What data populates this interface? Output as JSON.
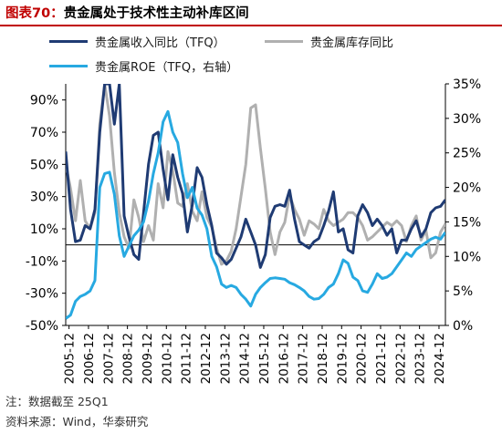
{
  "title": {
    "prefix": "图表70：",
    "text": "贵金属处于技术性主动补库区间"
  },
  "legend": [
    {
      "label": "贵金属收入同比（TFQ）",
      "color": "#1f3b73"
    },
    {
      "label": "贵金属库存同比",
      "color": "#b0b0b0"
    },
    {
      "label": "贵金属ROE（TFQ，右轴）",
      "color": "#27a9e1"
    }
  ],
  "footnotes": {
    "note": "注：数据截至 25Q1",
    "source": "资料来源：Wind，华泰研究"
  },
  "chart_data": {
    "type": "line",
    "x": [
      "2005-12",
      "2006-12",
      "2007-12",
      "2008-12",
      "2009-12",
      "2010-12",
      "2011-12",
      "2012-12",
      "2013-12",
      "2014-12",
      "2015-12",
      "2016-12",
      "2017-12",
      "2018-12",
      "2019-12",
      "2020-12",
      "2021-12",
      "2022-12",
      "2023-12",
      "2024-12"
    ],
    "x_start": 2005.75,
    "x_end": 2025.25,
    "left_axis": {
      "ylim": [
        -50,
        100
      ],
      "ticks": [
        "-50%",
        "-30%",
        "-10%",
        "10%",
        "30%",
        "50%",
        "70%",
        "90%"
      ],
      "tick_values": [
        -50,
        -30,
        -10,
        10,
        30,
        50,
        70,
        90
      ]
    },
    "right_axis": {
      "ylim": [
        0,
        35
      ],
      "ticks": [
        "0%",
        "5%",
        "10%",
        "15%",
        "20%",
        "25%",
        "30%",
        "35%"
      ],
      "tick_values": [
        0,
        5,
        10,
        15,
        20,
        25,
        30,
        35
      ]
    },
    "zero_line": 0,
    "series": [
      {
        "name": "贵金属收入同比（TFQ）",
        "axis": "left",
        "color": "#1f3b73",
        "width": 3,
        "points": [
          [
            2005.75,
            58
          ],
          [
            2006.0,
            22
          ],
          [
            2006.25,
            2
          ],
          [
            2006.5,
            3
          ],
          [
            2006.75,
            12
          ],
          [
            2007.0,
            10
          ],
          [
            2007.25,
            22
          ],
          [
            2007.5,
            70
          ],
          [
            2007.75,
            100
          ],
          [
            2008.0,
            100
          ],
          [
            2008.25,
            75
          ],
          [
            2008.5,
            100
          ],
          [
            2008.75,
            18
          ],
          [
            2009.0,
            5
          ],
          [
            2009.25,
            -6
          ],
          [
            2009.5,
            -9
          ],
          [
            2009.75,
            20
          ],
          [
            2010.0,
            50
          ],
          [
            2010.25,
            68
          ],
          [
            2010.5,
            70
          ],
          [
            2010.75,
            47
          ],
          [
            2011.0,
            28
          ],
          [
            2011.25,
            56
          ],
          [
            2011.5,
            42
          ],
          [
            2011.75,
            32
          ],
          [
            2012.0,
            8
          ],
          [
            2012.25,
            25
          ],
          [
            2012.5,
            48
          ],
          [
            2012.75,
            42
          ],
          [
            2013.0,
            25
          ],
          [
            2013.25,
            12
          ],
          [
            2013.5,
            -5
          ],
          [
            2013.75,
            -8
          ],
          [
            2014.0,
            -12
          ],
          [
            2014.25,
            -9
          ],
          [
            2014.5,
            -2
          ],
          [
            2014.75,
            5
          ],
          [
            2015.0,
            16
          ],
          [
            2015.25,
            8
          ],
          [
            2015.5,
            0
          ],
          [
            2015.75,
            -14
          ],
          [
            2016.0,
            -6
          ],
          [
            2016.25,
            17
          ],
          [
            2016.5,
            24
          ],
          [
            2016.75,
            25
          ],
          [
            2017.0,
            24
          ],
          [
            2017.25,
            34
          ],
          [
            2017.5,
            16
          ],
          [
            2017.75,
            2
          ],
          [
            2018.0,
            0
          ],
          [
            2018.25,
            -2
          ],
          [
            2018.5,
            2
          ],
          [
            2018.75,
            4
          ],
          [
            2019.0,
            12
          ],
          [
            2019.25,
            21
          ],
          [
            2019.5,
            33
          ],
          [
            2019.75,
            8
          ],
          [
            2020.0,
            10
          ],
          [
            2020.25,
            -3
          ],
          [
            2020.5,
            -5
          ],
          [
            2020.75,
            18
          ],
          [
            2021.0,
            25
          ],
          [
            2021.25,
            20
          ],
          [
            2021.5,
            12
          ],
          [
            2021.75,
            16
          ],
          [
            2022.0,
            12
          ],
          [
            2022.25,
            6
          ],
          [
            2022.5,
            10
          ],
          [
            2022.75,
            -5
          ],
          [
            2023.0,
            3
          ],
          [
            2023.25,
            3
          ],
          [
            2023.5,
            10
          ],
          [
            2023.75,
            15
          ],
          [
            2024.0,
            5
          ],
          [
            2024.25,
            10
          ],
          [
            2024.5,
            20
          ],
          [
            2024.75,
            23
          ],
          [
            2025.0,
            24
          ],
          [
            2025.25,
            28
          ]
        ]
      },
      {
        "name": "贵金属库存同比",
        "axis": "left",
        "color": "#b0b0b0",
        "width": 3,
        "points": [
          [
            2005.75,
            50
          ],
          [
            2006.0,
            35
          ],
          [
            2006.25,
            15
          ],
          [
            2006.5,
            40
          ],
          [
            2006.75,
            15
          ],
          [
            2007.0,
            10
          ],
          [
            2007.25,
            20
          ],
          [
            2007.5,
            75
          ],
          [
            2007.75,
            100
          ],
          [
            2008.0,
            80
          ],
          [
            2008.25,
            45
          ],
          [
            2008.5,
            20
          ],
          [
            2008.75,
            5
          ],
          [
            2009.0,
            -2
          ],
          [
            2009.25,
            28
          ],
          [
            2009.5,
            17
          ],
          [
            2009.75,
            2
          ],
          [
            2010.0,
            12
          ],
          [
            2010.25,
            3
          ],
          [
            2010.5,
            38
          ],
          [
            2010.75,
            23
          ],
          [
            2011.0,
            58
          ],
          [
            2011.25,
            46
          ],
          [
            2011.5,
            26
          ],
          [
            2011.75,
            24
          ],
          [
            2012.0,
            38
          ],
          [
            2012.25,
            21
          ],
          [
            2012.5,
            15
          ],
          [
            2012.75,
            33
          ],
          [
            2013.0,
            17
          ],
          [
            2013.25,
            11
          ],
          [
            2013.5,
            -2
          ],
          [
            2013.75,
            -12
          ],
          [
            2014.0,
            -10
          ],
          [
            2014.25,
            -4
          ],
          [
            2014.5,
            10
          ],
          [
            2014.75,
            30
          ],
          [
            2015.0,
            50
          ],
          [
            2015.25,
            85
          ],
          [
            2015.5,
            87
          ],
          [
            2015.75,
            60
          ],
          [
            2016.0,
            35
          ],
          [
            2016.25,
            8
          ],
          [
            2016.5,
            -6
          ],
          [
            2016.75,
            8
          ],
          [
            2017.0,
            14
          ],
          [
            2017.25,
            31
          ],
          [
            2017.5,
            22
          ],
          [
            2017.75,
            16
          ],
          [
            2018.0,
            6
          ],
          [
            2018.25,
            15
          ],
          [
            2018.5,
            13
          ],
          [
            2018.75,
            10
          ],
          [
            2019.0,
            22
          ],
          [
            2019.25,
            15
          ],
          [
            2019.5,
            12
          ],
          [
            2019.75,
            14
          ],
          [
            2020.0,
            16
          ],
          [
            2020.25,
            20
          ],
          [
            2020.5,
            20
          ],
          [
            2020.75,
            17
          ],
          [
            2021.0,
            12
          ],
          [
            2021.25,
            3
          ],
          [
            2021.5,
            5
          ],
          [
            2021.75,
            8
          ],
          [
            2022.0,
            11
          ],
          [
            2022.25,
            14
          ],
          [
            2022.5,
            12
          ],
          [
            2022.75,
            15
          ],
          [
            2023.0,
            12
          ],
          [
            2023.25,
            2
          ],
          [
            2023.5,
            12
          ],
          [
            2023.75,
            18
          ],
          [
            2024.0,
            3
          ],
          [
            2024.25,
            9
          ],
          [
            2024.5,
            -8
          ],
          [
            2024.75,
            -5
          ],
          [
            2025.0,
            8
          ],
          [
            2025.25,
            13
          ]
        ]
      },
      {
        "name": "贵金属ROE（TFQ，右轴）",
        "axis": "right",
        "color": "#27a9e1",
        "width": 3,
        "points": [
          [
            2005.75,
            1.0
          ],
          [
            2006.0,
            1.5
          ],
          [
            2006.25,
            3.5
          ],
          [
            2006.5,
            4.2
          ],
          [
            2006.75,
            4.5
          ],
          [
            2007.0,
            5.0
          ],
          [
            2007.25,
            6.5
          ],
          [
            2007.5,
            20.0
          ],
          [
            2007.75,
            22.0
          ],
          [
            2008.0,
            22.2
          ],
          [
            2008.25,
            19.0
          ],
          [
            2008.5,
            13.0
          ],
          [
            2008.75,
            10.0
          ],
          [
            2009.0,
            11.5
          ],
          [
            2009.25,
            13.0
          ],
          [
            2009.5,
            13.8
          ],
          [
            2009.75,
            15.0
          ],
          [
            2010.0,
            18.0
          ],
          [
            2010.25,
            22.0
          ],
          [
            2010.5,
            25.0
          ],
          [
            2010.75,
            29.5
          ],
          [
            2011.0,
            31.0
          ],
          [
            2011.25,
            28.0
          ],
          [
            2011.5,
            26.5
          ],
          [
            2011.75,
            22.0
          ],
          [
            2012.0,
            18.5
          ],
          [
            2012.25,
            20.0
          ],
          [
            2012.5,
            17.0
          ],
          [
            2012.75,
            16.0
          ],
          [
            2013.0,
            14.0
          ],
          [
            2013.25,
            10.0
          ],
          [
            2013.5,
            8.5
          ],
          [
            2013.75,
            6.0
          ],
          [
            2014.0,
            5.5
          ],
          [
            2014.25,
            5.8
          ],
          [
            2014.5,
            5.5
          ],
          [
            2014.75,
            4.5
          ],
          [
            2015.0,
            3.8
          ],
          [
            2015.25,
            2.8
          ],
          [
            2015.5,
            4.5
          ],
          [
            2015.75,
            5.5
          ],
          [
            2016.0,
            6.2
          ],
          [
            2016.25,
            6.8
          ],
          [
            2016.5,
            6.9
          ],
          [
            2016.75,
            6.8
          ],
          [
            2017.0,
            6.7
          ],
          [
            2017.25,
            6.2
          ],
          [
            2017.5,
            5.9
          ],
          [
            2017.75,
            5.5
          ],
          [
            2018.0,
            5.0
          ],
          [
            2018.25,
            4.2
          ],
          [
            2018.5,
            3.8
          ],
          [
            2018.75,
            3.9
          ],
          [
            2019.0,
            4.5
          ],
          [
            2019.25,
            5.5
          ],
          [
            2019.5,
            6.0
          ],
          [
            2019.75,
            7.5
          ],
          [
            2020.0,
            9.5
          ],
          [
            2020.25,
            9.0
          ],
          [
            2020.5,
            7.0
          ],
          [
            2020.75,
            6.5
          ],
          [
            2021.0,
            5.0
          ],
          [
            2021.25,
            4.8
          ],
          [
            2021.5,
            6.0
          ],
          [
            2021.75,
            7.5
          ],
          [
            2022.0,
            6.8
          ],
          [
            2022.25,
            7.0
          ],
          [
            2022.5,
            7.5
          ],
          [
            2022.75,
            8.5
          ],
          [
            2023.0,
            9.5
          ],
          [
            2023.25,
            10.5
          ],
          [
            2023.5,
            10.0
          ],
          [
            2023.75,
            11.0
          ],
          [
            2024.0,
            11.5
          ],
          [
            2024.25,
            12.0
          ],
          [
            2024.5,
            12.5
          ],
          [
            2024.75,
            12.8
          ],
          [
            2025.0,
            12.5
          ],
          [
            2025.25,
            13.5
          ]
        ]
      }
    ]
  }
}
